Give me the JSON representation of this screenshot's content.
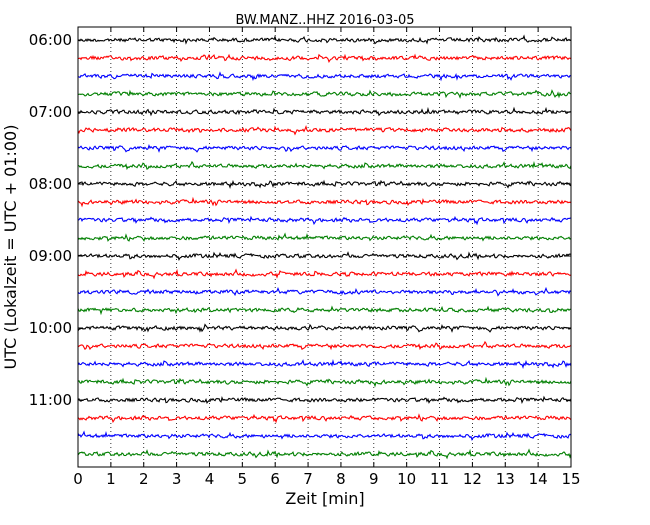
{
  "chart_data": {
    "type": "line",
    "title": "BW.MANZ..HHZ 2016-03-05",
    "xlabel": "Zeit  [min]",
    "ylabel": "UTC (Lokalzeit = UTC + 01:00)",
    "xlim": [
      0,
      15
    ],
    "x_ticks": [
      "0",
      "1",
      "2",
      "3",
      "4",
      "5",
      "6",
      "7",
      "8",
      "9",
      "10",
      "11",
      "12",
      "13",
      "14",
      "15"
    ],
    "y_ticks": [
      "06:00",
      "07:00",
      "08:00",
      "09:00",
      "10:00",
      "11:00"
    ],
    "grid": "vertical dotted",
    "trace_colors": [
      "#000000",
      "#ff0000",
      "#0000ff",
      "#007f00"
    ],
    "series": [
      {
        "start": "06:00",
        "color_index": 0
      },
      {
        "start": "06:15",
        "color_index": 1
      },
      {
        "start": "06:30",
        "color_index": 2
      },
      {
        "start": "06:45",
        "color_index": 3
      },
      {
        "start": "07:00",
        "color_index": 0
      },
      {
        "start": "07:15",
        "color_index": 1
      },
      {
        "start": "07:30",
        "color_index": 2
      },
      {
        "start": "07:45",
        "color_index": 3
      },
      {
        "start": "08:00",
        "color_index": 0
      },
      {
        "start": "08:15",
        "color_index": 1
      },
      {
        "start": "08:30",
        "color_index": 2
      },
      {
        "start": "08:45",
        "color_index": 3
      },
      {
        "start": "09:00",
        "color_index": 0
      },
      {
        "start": "09:15",
        "color_index": 1
      },
      {
        "start": "09:30",
        "color_index": 2
      },
      {
        "start": "09:45",
        "color_index": 3
      },
      {
        "start": "10:00",
        "color_index": 0
      },
      {
        "start": "10:15",
        "color_index": 1
      },
      {
        "start": "10:30",
        "color_index": 2
      },
      {
        "start": "10:45",
        "color_index": 3
      },
      {
        "start": "11:00",
        "color_index": 0
      },
      {
        "start": "11:15",
        "color_index": 1
      },
      {
        "start": "11:30",
        "color_index": 2
      },
      {
        "start": "11:45",
        "color_index": 3
      }
    ]
  }
}
